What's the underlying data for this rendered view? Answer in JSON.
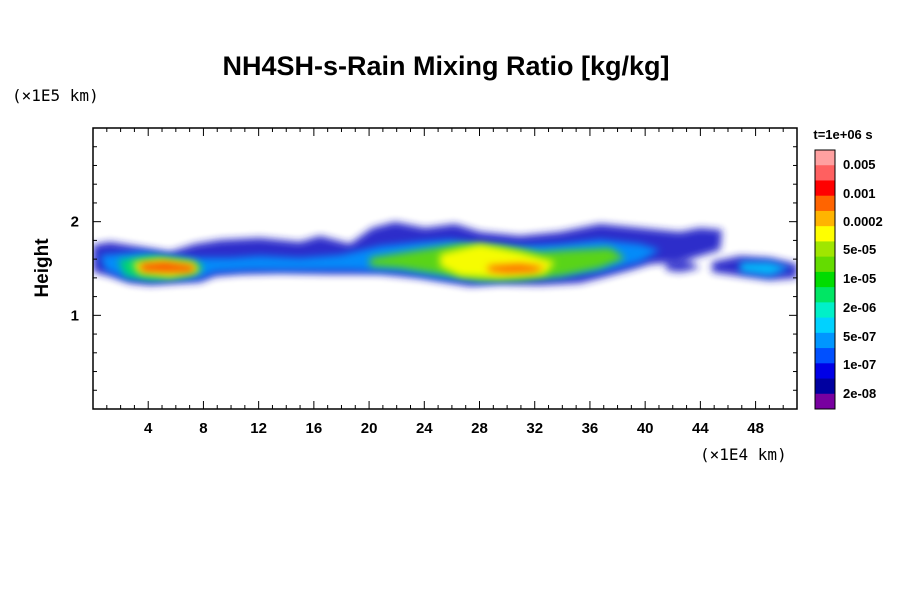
{
  "chart_data": {
    "type": "heatmap",
    "title": "NH4SH-s-Rain Mixing Ratio [kg/kg]",
    "ylabel": "Height",
    "y_unit": "(×1E5 km)",
    "x_unit": "(×1E4 km)",
    "time_label": "t=1e+06 s",
    "xlim": [
      0,
      51
    ],
    "ylim": [
      0,
      3
    ],
    "x_ticks": [
      4,
      8,
      12,
      16,
      20,
      24,
      28,
      32,
      36,
      40,
      44,
      48
    ],
    "y_ticks": [
      1,
      2
    ],
    "colorbar": {
      "labels": [
        "0.005",
        "0.001",
        "0.0002",
        "5e-05",
        "1e-05",
        "2e-06",
        "5e-07",
        "1e-07",
        "2e-08"
      ],
      "colors": [
        "#ffa0a0",
        "#ff6060",
        "#ff0000",
        "#ff6400",
        "#ffb400",
        "#ffff00",
        "#a0e600",
        "#64dc00",
        "#00dc00",
        "#00e664",
        "#00f0c8",
        "#00d2ff",
        "#0096ff",
        "#0050ff",
        "#0000e6",
        "#0000a0",
        "#7800a0"
      ]
    }
  }
}
